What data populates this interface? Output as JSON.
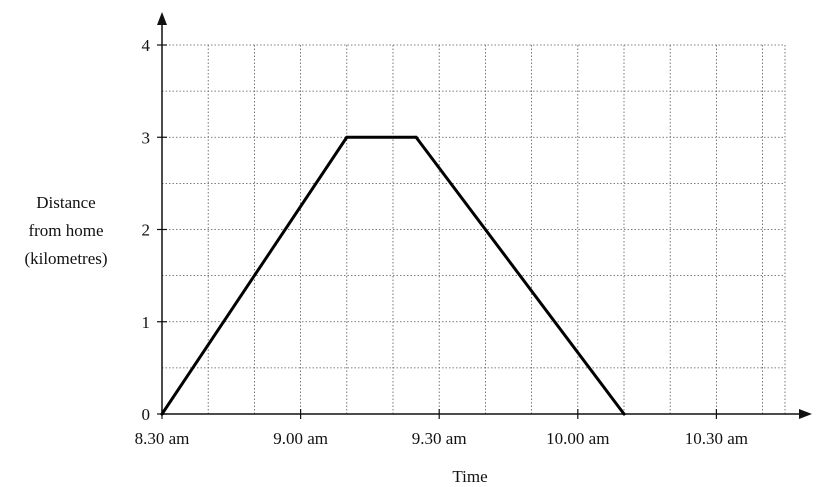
{
  "chart_data": {
    "type": "line",
    "title": "",
    "xlabel": "Time",
    "ylabel": [
      "Distance",
      "from home",
      "(kilometres)"
    ],
    "x_tick_labels": [
      "8.30 am",
      "9.00 am",
      "9.30 am",
      "10.00 am",
      "10.30 am"
    ],
    "x_tick_values_minutes_after_830": [
      0,
      30,
      60,
      90,
      120
    ],
    "y_tick_labels": [
      "0",
      "1",
      "2",
      "3",
      "4"
    ],
    "y_tick_values": [
      0,
      1,
      2,
      3,
      4
    ],
    "xlim_minutes": [
      0,
      130
    ],
    "ylim": [
      0,
      4
    ],
    "grid": {
      "on": true,
      "x_minor_step_minutes": 10,
      "y_minor_step": 0.5,
      "style": "dotted"
    },
    "series": [
      {
        "points": [
          {
            "x_minutes": 0,
            "y": 0
          },
          {
            "x_minutes": 40,
            "y": 3
          },
          {
            "x_minutes": 55,
            "y": 3
          },
          {
            "x_minutes": 100,
            "y": 0
          }
        ]
      }
    ],
    "colors": {
      "line": "#000000",
      "grid": "#555555",
      "axes": "#111111"
    }
  }
}
